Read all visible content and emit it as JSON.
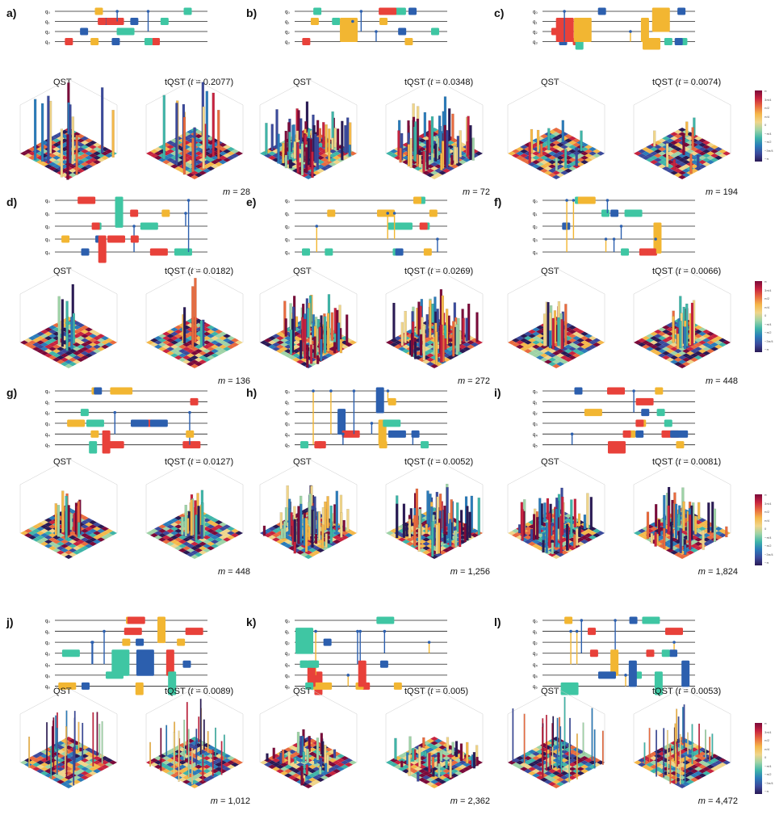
{
  "panels": [
    {
      "label": "a)",
      "qst": "QST",
      "tqst_prefix": "tQST (",
      "t_sym": "t",
      "tqst_suffix": " = 0.2077)",
      "m_sym": "m",
      "m_text": " = 28",
      "qubits": [
        "q₀",
        "q₁",
        "q₂",
        "q₃"
      ],
      "style": "tall"
    },
    {
      "label": "b)",
      "qst": "QST",
      "tqst_prefix": "tQST (",
      "t_sym": "t",
      "tqst_suffix": " = 0.0348)",
      "m_sym": "m",
      "m_text": " = 72",
      "qubits": [
        "q₀",
        "q₁",
        "q₂",
        "q₃"
      ],
      "style": "dense"
    },
    {
      "label": "c)",
      "qst": "QST",
      "tqst_prefix": "tQST (",
      "t_sym": "t",
      "tqst_suffix": " = 0.0074)",
      "m_sym": "m",
      "m_text": " = 194",
      "qubits": [
        "q₀",
        "q₁",
        "q₂",
        "q₃"
      ],
      "style": "flat"
    },
    {
      "label": "d)",
      "qst": "QST",
      "tqst_prefix": "tQST (",
      "t_sym": "t",
      "tqst_suffix": " = 0.0182)",
      "m_sym": "m",
      "m_text": " = 136",
      "qubits": [
        "q₀",
        "q₁",
        "q₂",
        "q₃",
        "q₄"
      ],
      "style": "spike"
    },
    {
      "label": "e)",
      "qst": "QST",
      "tqst_prefix": "tQST (",
      "t_sym": "t",
      "tqst_suffix": " = 0.0269)",
      "m_sym": "m",
      "m_text": " = 272",
      "qubits": [
        "q₀",
        "q₁",
        "q₂",
        "q₃",
        "q₄"
      ],
      "style": "dense"
    },
    {
      "label": "f)",
      "qst": "QST",
      "tqst_prefix": "tQST (",
      "t_sym": "t",
      "tqst_suffix": " = 0.0066)",
      "m_sym": "m",
      "m_text": " = 448",
      "qubits": [
        "q₀",
        "q₁",
        "q₂",
        "q₃",
        "q₄"
      ],
      "style": "center"
    },
    {
      "label": "g)",
      "qst": "QST",
      "tqst_prefix": "tQST (",
      "t_sym": "t",
      "tqst_suffix": " = 0.0127)",
      "m_sym": "m",
      "m_text": " = 448",
      "qubits": [
        "q₀",
        "q₁",
        "q₂",
        "q₃",
        "q₄",
        "q₅"
      ],
      "style": "center"
    },
    {
      "label": "h)",
      "qst": "QST",
      "tqst_prefix": "tQST (",
      "t_sym": "t",
      "tqst_suffix": " = 0.0052)",
      "m_sym": "m",
      "m_text": " = 1,256",
      "qubits": [
        "q₀",
        "q₁",
        "q₂",
        "q₃",
        "q₄",
        "q₅"
      ],
      "style": "dense"
    },
    {
      "label": "i)",
      "qst": "QST",
      "tqst_prefix": "tQST (",
      "t_sym": "t",
      "tqst_suffix": " = 0.0081)",
      "m_sym": "m",
      "m_text": " = 1,824",
      "qubits": [
        "q₀",
        "q₁",
        "q₂",
        "q₃",
        "q₄",
        "q₅"
      ],
      "style": "spread"
    },
    {
      "label": "j)",
      "qst": "QST",
      "tqst_prefix": "tQST (",
      "t_sym": "t",
      "tqst_suffix": " = 0.0089)",
      "m_sym": "m",
      "m_text": " = 1,012",
      "qubits": [
        "q₀",
        "q₁",
        "q₂",
        "q₃",
        "q₄",
        "q₅",
        "q₆"
      ],
      "style": "sparse"
    },
    {
      "label": "k)",
      "qst": "QST",
      "tqst_prefix": "tQST (",
      "t_sym": "t",
      "tqst_suffix": " = 0.005)",
      "m_sym": "m",
      "m_text": " = 2,362",
      "qubits": [
        "q₀",
        "q₁",
        "q₂",
        "q₃",
        "q₄",
        "q₅",
        "q₆"
      ],
      "style": "noise"
    },
    {
      "label": "l)",
      "qst": "QST",
      "tqst_prefix": "tQST (",
      "t_sym": "t",
      "tqst_suffix": " = 0.0053)",
      "m_sym": "m",
      "m_text": " = 4,472",
      "qubits": [
        "q₀",
        "q₁",
        "q₂",
        "q₃",
        "q₄",
        "q₅",
        "q₆"
      ],
      "style": "sparse"
    }
  ],
  "colorbar": {
    "ticks": [
      "π",
      "3π/4",
      "π/2",
      "π/4",
      "0",
      "−π/4",
      "−π/2",
      "−3π/4",
      "−π"
    ],
    "colors": [
      "#7a0a3a",
      "#c7233f",
      "#e86b3f",
      "#f4b84a",
      "#f0d58a",
      "#9ed3a6",
      "#3fb5a8",
      "#2b7bb9",
      "#3b4a9c",
      "#2a1a55"
    ]
  }
}
